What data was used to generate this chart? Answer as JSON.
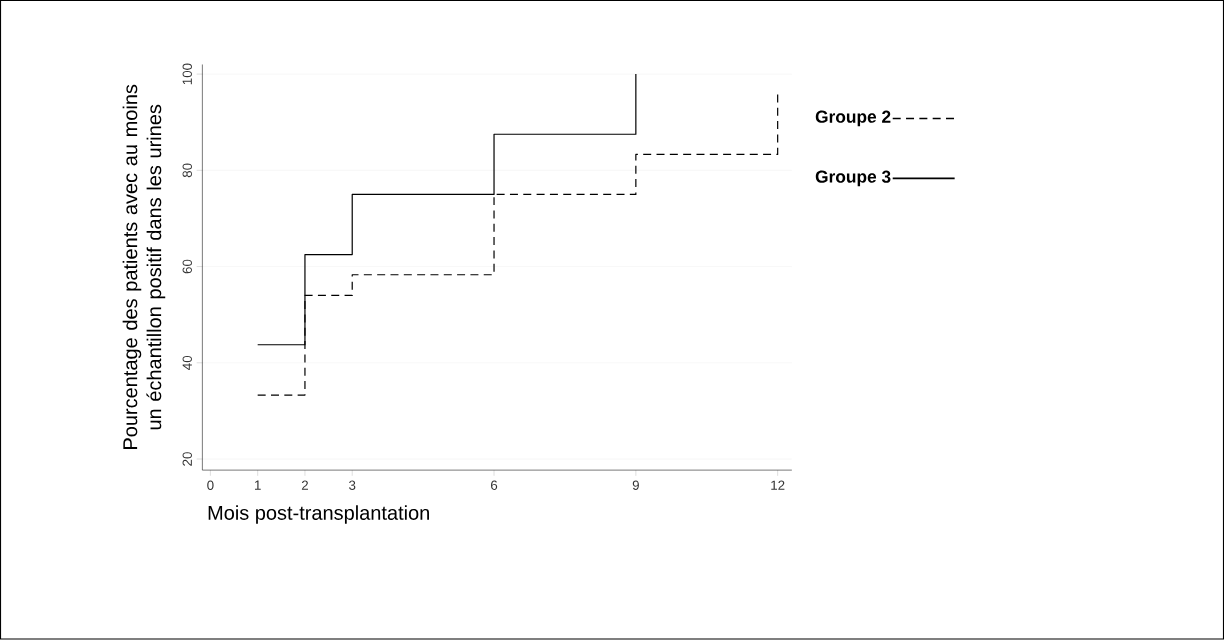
{
  "chart_data": {
    "type": "step",
    "xlabel": "Mois post-transplantation",
    "ylabel": "Pourcentage des patients avec au moins un échantillon positif dans les urines",
    "series": [
      {
        "name": "Groupe 2",
        "color": "#000000",
        "line_style": "dashed",
        "x": [
          1,
          2,
          3,
          6,
          9,
          12
        ],
        "values": [
          33.3,
          54,
          58.3,
          75,
          83.3,
          95.8
        ]
      },
      {
        "name": "Groupe 3",
        "color": "#000000",
        "line_style": "solid",
        "x": [
          1,
          2,
          3,
          6,
          9
        ],
        "values": [
          43.75,
          62.5,
          75,
          87.5,
          100
        ]
      }
    ],
    "xlim": [
      -0.17,
      12.3
    ],
    "ylim": [
      17.7,
      102
    ],
    "xticks": [
      0,
      1,
      2,
      3,
      6,
      9,
      12
    ],
    "yticks": [
      20,
      40,
      60,
      80,
      100
    ],
    "grid": "y",
    "legend": "right"
  }
}
